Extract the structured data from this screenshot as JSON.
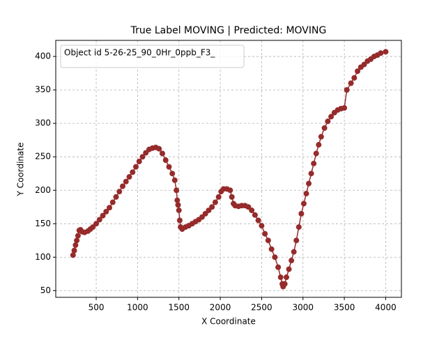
{
  "chart_data": {
    "type": "line",
    "title": "True Label MOVING | Predicted: MOVING",
    "x_label": "X Coordinate",
    "y_label": "Y Coordinate",
    "xlim": [
      11,
      4190
    ],
    "ylim": [
      40,
      424
    ],
    "xticks": [
      500,
      1000,
      1500,
      2000,
      2500,
      3000,
      3500,
      4000
    ],
    "yticks": [
      50,
      100,
      150,
      200,
      250,
      300,
      350,
      400
    ],
    "grid": true,
    "legend": "upper left",
    "series": [
      {
        "name": "Object id 5-26-25_90_0Hr_0ppb_F3_",
        "color": "#962b2b",
        "x": [
          220,
          235,
          250,
          265,
          280,
          295,
          310,
          330,
          360,
          400,
          430,
          460,
          500,
          540,
          580,
          620,
          660,
          700,
          740,
          780,
          820,
          860,
          900,
          940,
          980,
          1020,
          1060,
          1100,
          1140,
          1180,
          1220,
          1260,
          1300,
          1340,
          1380,
          1420,
          1450,
          1470,
          1480,
          1490,
          1500,
          1510,
          1520,
          1540,
          1580,
          1620,
          1660,
          1700,
          1740,
          1780,
          1820,
          1860,
          1900,
          1940,
          1980,
          2010,
          2040,
          2080,
          2120,
          2140,
          2160,
          2180,
          2220,
          2260,
          2300,
          2340,
          2380,
          2420,
          2460,
          2500,
          2540,
          2580,
          2620,
          2660,
          2700,
          2730,
          2750,
          2760,
          2780,
          2800,
          2830,
          2860,
          2890,
          2920,
          2950,
          2980,
          3010,
          3040,
          3070,
          3100,
          3130,
          3160,
          3190,
          3220,
          3260,
          3300,
          3340,
          3380,
          3420,
          3460,
          3500,
          3530,
          3580,
          3620,
          3660,
          3700,
          3740,
          3780,
          3820,
          3860,
          3900,
          3940,
          4000
        ],
        "values": [
          103,
          110,
          118,
          125,
          132,
          140,
          141,
          138,
          137,
          139,
          142,
          145,
          150,
          156,
          162,
          168,
          174,
          182,
          190,
          198,
          206,
          213,
          220,
          227,
          235,
          243,
          250,
          256,
          261,
          263,
          264,
          262,
          255,
          245,
          235,
          225,
          215,
          200,
          185,
          178,
          170,
          155,
          145,
          142,
          145,
          147,
          150,
          153,
          156,
          160,
          165,
          170,
          175,
          182,
          190,
          198,
          202,
          202,
          200,
          190,
          180,
          177,
          176,
          177,
          177,
          175,
          170,
          163,
          155,
          147,
          135,
          125,
          112,
          100,
          85,
          70,
          60,
          56,
          60,
          70,
          82,
          95,
          108,
          125,
          145,
          165,
          180,
          195,
          210,
          225,
          240,
          255,
          268,
          280,
          293,
          303,
          310,
          316,
          320,
          322,
          323,
          350,
          360,
          368,
          378,
          384,
          388,
          393,
          396,
          400,
          402,
          405,
          407
        ]
      }
    ]
  }
}
